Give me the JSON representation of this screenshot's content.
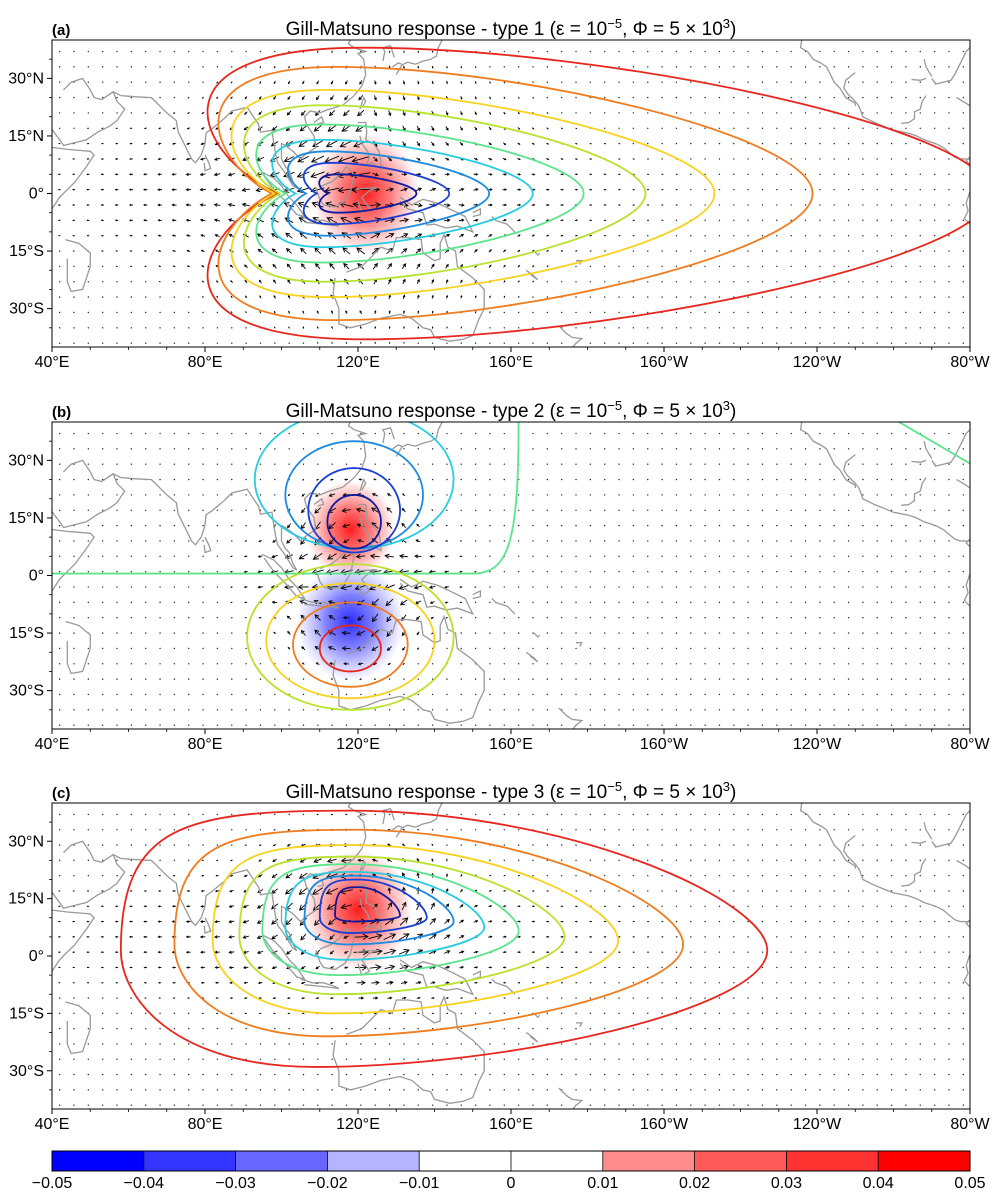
{
  "chart_data": {
    "type": "multi-panel map (filled contours, contour lines, vector field)",
    "panels": [
      {
        "letter": "(a)",
        "title": {
          "pre": "Gill-Matsuno response - type 1 (ε = 10",
          "sup1": "−5",
          "mid": ", Φ = 5 × 10",
          "sup2": "3",
          "post": ")"
        },
        "forcing": "symmetric",
        "shading": [
          {
            "lon": 122,
            "lat": 0,
            "sign": 1,
            "amp": 0.05
          }
        ],
        "contour_center": {
          "lon": 122,
          "lat": 0
        },
        "vector_pattern": "symmetric-westerly-inflow"
      },
      {
        "letter": "(b)",
        "title": {
          "pre": "Gill-Matsuno response - type 2 (ε = 10",
          "sup1": "−5",
          "mid": ", Φ = 5 × 10",
          "sup2": "3",
          "post": ")"
        },
        "forcing": "antisymmetric",
        "shading": [
          {
            "lon": 118,
            "lat": 12,
            "sign": 1,
            "amp": 0.04
          },
          {
            "lon": 118,
            "lat": -12,
            "sign": -1,
            "amp": 0.05
          }
        ],
        "contour_center": {
          "lon": 118,
          "lat": 0
        },
        "vector_pattern": "antisymmetric-cross-equatorial"
      },
      {
        "letter": "(c)",
        "title": {
          "pre": "Gill-Matsuno response - type 3 (ε = 10",
          "sup1": "−5",
          "mid": ", Φ = 5 × 10",
          "sup2": "3",
          "post": ")"
        },
        "forcing": "off-equatorial",
        "shading": [
          {
            "lon": 120,
            "lat": 12,
            "sign": 1,
            "amp": 0.05
          }
        ],
        "contour_center": {
          "lon": 120,
          "lat": 12
        },
        "vector_pattern": "off-equatorial-cyclone"
      }
    ],
    "x_ticks": [
      "40°E",
      "80°E",
      "120°E",
      "160°E",
      "160°W",
      "120°W",
      "80°W"
    ],
    "x_tick_values": [
      40,
      80,
      120,
      160,
      200,
      240,
      280
    ],
    "y_ticks": [
      "30°N",
      "15°N",
      "0°",
      "15°S",
      "30°S"
    ],
    "y_tick_values": [
      30,
      15,
      0,
      -15,
      -30
    ],
    "xlim": [
      40,
      280
    ],
    "ylim": [
      -40,
      40
    ],
    "colorbar": {
      "levels": [
        -0.05,
        -0.04,
        -0.03,
        -0.02,
        -0.01,
        0,
        0.01,
        0.02,
        0.03,
        0.04,
        0.05
      ],
      "tick_labels": [
        "−0.05",
        "−0.04",
        "−0.03",
        "−0.02",
        "−0.01",
        "0",
        "0.01",
        "0.02",
        "0.03",
        "0.04",
        "0.05"
      ],
      "colors": [
        "#0000ff",
        "#3434ff",
        "#6767ff",
        "#b4b4ff",
        "#ffffff",
        "#ffffff",
        "#ff8c8c",
        "#ff5a5a",
        "#ff3232",
        "#ff0000"
      ]
    },
    "contour_line_colors": [
      "#e8261d",
      "#f07c1e",
      "#f7d21e",
      "#b8e22b",
      "#5be58b",
      "#26cde0",
      "#1b8ae0",
      "#1a3fd2",
      "#0d1a9e"
    ],
    "coastline_color": "#999999"
  }
}
